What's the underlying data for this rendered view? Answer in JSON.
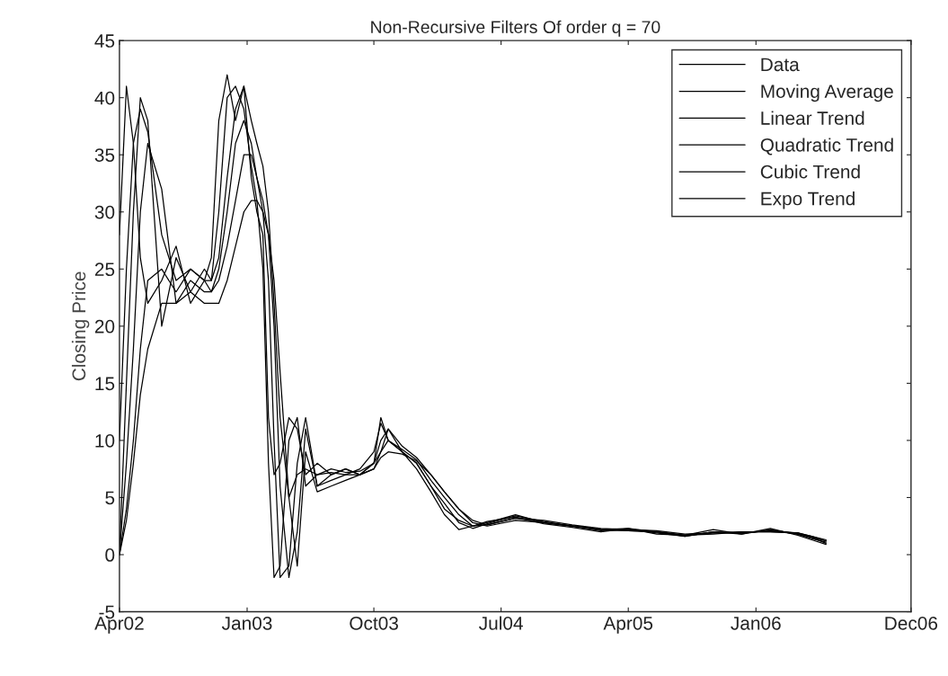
{
  "chart_data": {
    "type": "line",
    "title": "Non-Recursive Filters Of order q = 70",
    "ylabel": "Closing Price",
    "x": [
      "2002-04-01",
      "2002-04-16",
      "2002-05-01",
      "2002-05-16",
      "2002-06-01",
      "2002-07-01",
      "2002-08-01",
      "2002-09-01",
      "2002-10-01",
      "2002-10-16",
      "2002-11-01",
      "2002-11-19",
      "2002-12-07",
      "2002-12-25",
      "2003-01-10",
      "2003-01-22",
      "2003-02-04",
      "2003-02-16",
      "2003-02-28",
      "2003-03-13",
      "2003-04-01",
      "2003-04-19",
      "2003-05-07",
      "2003-06-01",
      "2003-07-01",
      "2003-08-01",
      "2003-09-01",
      "2003-10-01",
      "2003-10-16",
      "2003-11-01",
      "2003-12-01",
      "2004-01-01",
      "2004-02-01",
      "2004-03-01",
      "2004-04-01",
      "2004-05-01",
      "2004-06-01",
      "2004-08-01",
      "2004-10-01",
      "2004-12-01",
      "2005-02-01",
      "2005-04-01",
      "2005-06-01",
      "2005-08-01",
      "2005-10-01",
      "2005-12-01",
      "2006-02-01",
      "2006-04-01",
      "2006-05-01",
      "2006-06-01"
    ],
    "series": [
      {
        "name": "Data",
        "color": "#000000",
        "values": [
          28,
          41,
          36,
          26,
          22,
          24,
          27,
          22,
          24,
          26,
          38,
          42,
          38,
          41,
          33,
          30,
          28,
          12,
          7,
          8,
          12,
          11,
          7,
          8,
          7,
          7.5,
          7,
          8,
          12,
          10,
          9,
          8,
          6,
          4,
          3,
          2.5,
          2.8,
          3.5,
          2.8,
          2.5,
          2.2,
          2.3,
          2.0,
          1.6,
          2.0,
          1.8,
          2.2,
          1.8,
          1.5,
          1.0
        ]
      },
      {
        "name": "Moving Average",
        "color": "#000000",
        "values": [
          10,
          25,
          36,
          39,
          37,
          28,
          24,
          25,
          24,
          24,
          26,
          33,
          39,
          41,
          38,
          36,
          34,
          30,
          22,
          12,
          5,
          7,
          7.5,
          7,
          7.5,
          7.2,
          7.3,
          8,
          9,
          11,
          9.5,
          8.5,
          7,
          5.5,
          4,
          3,
          2.6,
          3.2,
          3,
          2.6,
          2.3,
          2.2,
          2.1,
          1.8,
          1.9,
          1.9,
          2.1,
          1.9,
          1.6,
          1.2
        ]
      },
      {
        "name": "Linear Trend",
        "color": "#000000",
        "values": [
          0,
          15,
          30,
          40,
          38,
          20,
          26,
          23,
          25,
          24,
          30,
          40,
          41,
          39,
          34,
          31,
          25,
          8,
          -2,
          -1,
          10,
          12,
          6,
          7,
          7.2,
          7,
          7.5,
          9,
          11.5,
          10,
          9,
          7.5,
          5.5,
          3.5,
          2.2,
          2.5,
          2.9,
          3.3,
          2.7,
          2.4,
          2.0,
          2.3,
          1.8,
          1.7,
          2.2,
          1.8,
          2.3,
          1.7,
          1.3,
          0.9
        ]
      },
      {
        "name": "Quadratic Trend",
        "color": "#000000",
        "values": [
          0,
          8,
          18,
          30,
          36,
          32,
          22,
          24,
          23,
          23,
          25,
          30,
          36,
          38,
          36,
          33,
          30,
          24,
          10,
          -2,
          -1,
          8,
          12,
          6,
          7,
          7.5,
          7,
          8,
          10,
          11,
          9,
          8,
          6,
          4.5,
          2.8,
          2.3,
          2.7,
          3.4,
          2.9,
          2.5,
          2.1,
          2.2,
          1.9,
          1.6,
          2.0,
          1.9,
          2.1,
          1.8,
          1.4,
          1.1
        ]
      },
      {
        "name": "Cubic Trend",
        "color": "#000000",
        "values": [
          0,
          4,
          10,
          18,
          24,
          25,
          23,
          25,
          24,
          23,
          24,
          27,
          31,
          35,
          35,
          33,
          31,
          28,
          20,
          6,
          -2,
          2,
          11,
          6,
          6.5,
          7,
          7,
          7.5,
          9,
          10,
          9.2,
          8.3,
          6.5,
          5,
          3.5,
          2.5,
          2.6,
          3.2,
          2.8,
          2.5,
          2.2,
          2.1,
          2.0,
          1.7,
          1.9,
          2.0,
          2.0,
          1.9,
          1.5,
          1.2
        ]
      },
      {
        "name": "Expo Trend",
        "color": "#000000",
        "values": [
          0,
          3,
          8,
          14,
          18,
          22,
          22,
          23,
          22,
          22,
          22,
          24,
          27,
          30,
          31,
          31,
          30,
          28,
          24,
          16,
          5,
          -1,
          9,
          5.5,
          6,
          6.5,
          7,
          7.5,
          8.5,
          9,
          8.8,
          8.2,
          7,
          5.5,
          4,
          2.8,
          2.5,
          3.0,
          2.8,
          2.5,
          2.2,
          2.1,
          2.0,
          1.7,
          1.8,
          2.0,
          2.0,
          1.9,
          1.6,
          1.3
        ]
      }
    ],
    "xlim": [
      "2002-04-01",
      "2006-12-01"
    ],
    "xticks": [
      {
        "value": "2002-04-01",
        "label": "Apr02"
      },
      {
        "value": "2003-01-01",
        "label": "Jan03"
      },
      {
        "value": "2003-10-01",
        "label": "Oct03"
      },
      {
        "value": "2004-07-01",
        "label": "Jul04"
      },
      {
        "value": "2005-04-01",
        "label": "Apr05"
      },
      {
        "value": "2006-01-01",
        "label": "Jan06"
      },
      {
        "value": "2006-12-01",
        "label": "Dec06"
      }
    ],
    "ylim": [
      -5,
      45
    ],
    "yticks": [
      -5,
      0,
      5,
      10,
      15,
      20,
      25,
      30,
      35,
      40,
      45
    ],
    "legend": "top right",
    "grid": false,
    "marker": "none",
    "line_style": "solid"
  }
}
